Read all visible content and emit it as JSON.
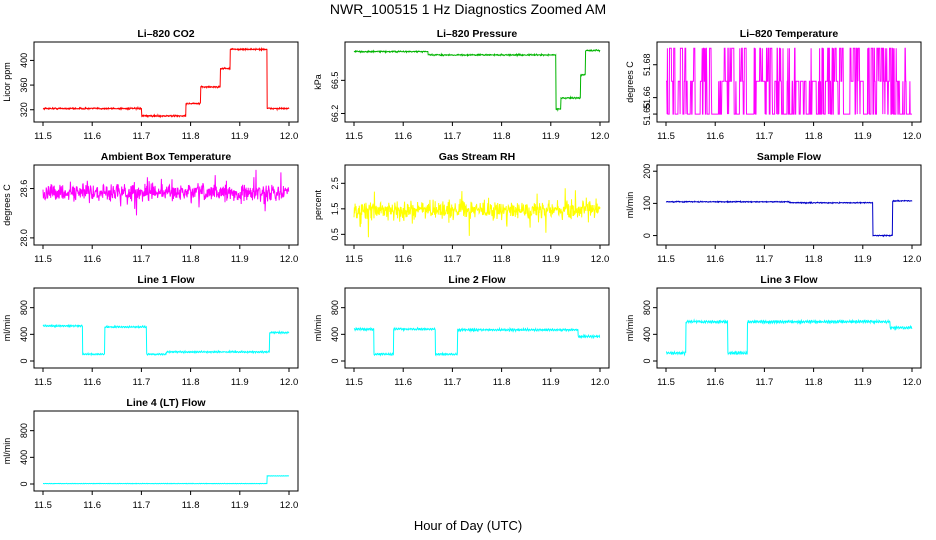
{
  "page": {
    "title": "NWR_100515  1 Hz Diagnostics Zoomed AM",
    "xaxis_title": "Hour of Day (UTC)"
  },
  "chart_data": [
    {
      "id": "co2",
      "type": "line",
      "title": "Li–820 CO2",
      "ylabel": "Licor ppm",
      "color": "#ff0000",
      "ylim": [
        305,
        425
      ],
      "yticks": [
        320,
        360,
        400
      ],
      "ytick_labels": [
        "320",
        "360",
        "400"
      ],
      "xlim": [
        11.5,
        12.0
      ],
      "xticks": [
        11.5,
        11.6,
        11.7,
        11.8,
        11.9,
        12.0
      ],
      "xtick_labels": [
        "11.5",
        "11.6",
        "11.7",
        "11.8",
        "11.9",
        "12.0"
      ],
      "noise": 1.2,
      "segments": [
        [
          11.5,
          11.7,
          322
        ],
        [
          11.7,
          11.79,
          310
        ],
        [
          11.79,
          11.82,
          330
        ],
        [
          11.82,
          11.86,
          357
        ],
        [
          11.86,
          11.88,
          387
        ],
        [
          11.88,
          11.955,
          418
        ],
        [
          11.955,
          12.0,
          322
        ]
      ]
    },
    {
      "id": "pressure",
      "type": "line",
      "title": "Li–820 Pressure",
      "ylabel": "kPa",
      "color": "#00b400",
      "ylim": [
        66.15,
        66.82
      ],
      "yticks": [
        66.2,
        66.5
      ],
      "ytick_labels": [
        "66.2",
        "66.5"
      ],
      "xlim": [
        11.5,
        12.0
      ],
      "xticks": [
        11.5,
        11.6,
        11.7,
        11.8,
        11.9,
        12.0
      ],
      "xtick_labels": [
        "11.5",
        "11.6",
        "11.7",
        "11.8",
        "11.9",
        "12.0"
      ],
      "noise": 0.006,
      "segments": [
        [
          11.5,
          11.65,
          66.76
        ],
        [
          11.65,
          11.91,
          66.73
        ],
        [
          11.91,
          11.92,
          66.24
        ],
        [
          11.92,
          11.96,
          66.34
        ],
        [
          11.96,
          11.97,
          66.55
        ],
        [
          11.97,
          12.0,
          66.77
        ]
      ]
    },
    {
      "id": "licor-temp",
      "type": "line",
      "title": "Li–820 Temperature",
      "ylabel": "degrees C",
      "color": "#ff00ff",
      "ylim": [
        51.647,
        51.692
      ],
      "yticks": [
        51.65,
        51.66,
        51.68
      ],
      "ytick_labels": [
        "51.65",
        "51.66",
        "51.68"
      ],
      "xlim": [
        11.5,
        12.0
      ],
      "xticks": [
        11.5,
        11.6,
        11.7,
        11.8,
        11.9,
        12.0
      ],
      "xtick_labels": [
        "11.5",
        "11.6",
        "11.7",
        "11.8",
        "11.9",
        "12.0"
      ],
      "levels": [
        51.65,
        51.67,
        51.69
      ]
    },
    {
      "id": "ambient-temp",
      "type": "line",
      "title": "Ambient Box Temperature",
      "ylabel": "degrees C",
      "color": "#ff00ff",
      "ylim": [
        27.95,
        28.85
      ],
      "yticks": [
        28.0,
        28.6
      ],
      "ytick_labels": [
        "28.0",
        "28.6"
      ],
      "xlim": [
        11.5,
        12.0
      ],
      "xticks": [
        11.5,
        11.6,
        11.7,
        11.8,
        11.9,
        12.0
      ],
      "xtick_labels": [
        "11.5",
        "11.6",
        "11.7",
        "11.8",
        "11.9",
        "12.0"
      ],
      "center": 28.55,
      "noise": 0.1
    },
    {
      "id": "rh",
      "type": "line",
      "title": "Gas Stream RH",
      "ylabel": "percent",
      "color": "#ffff00",
      "ylim": [
        0.2,
        3.1
      ],
      "yticks": [
        0.5,
        1.5,
        2.5
      ],
      "ytick_labels": [
        "0.5",
        "1.5",
        "2.5"
      ],
      "xlim": [
        11.5,
        12.0
      ],
      "xticks": [
        11.5,
        11.6,
        11.7,
        11.8,
        11.9,
        12.0
      ],
      "xtick_labels": [
        "11.5",
        "11.6",
        "11.7",
        "11.8",
        "11.9",
        "12.0"
      ],
      "center": 1.45,
      "noise": 0.35
    },
    {
      "id": "sample-flow",
      "type": "line",
      "title": "Sample Flow",
      "ylabel": "ml/min",
      "color": "#0000c8",
      "ylim": [
        -20,
        210
      ],
      "yticks": [
        0,
        100,
        200
      ],
      "ytick_labels": [
        "0",
        "100",
        "200"
      ],
      "xlim": [
        11.5,
        12.0
      ],
      "xticks": [
        11.5,
        11.6,
        11.7,
        11.8,
        11.9,
        12.0
      ],
      "xtick_labels": [
        "11.5",
        "11.6",
        "11.7",
        "11.8",
        "11.9",
        "12.0"
      ],
      "noise": 1.5,
      "segments": [
        [
          11.5,
          11.75,
          105
        ],
        [
          11.75,
          11.92,
          102
        ],
        [
          11.92,
          11.96,
          0
        ],
        [
          11.96,
          12.0,
          108
        ]
      ]
    },
    {
      "id": "line1",
      "type": "line",
      "title": "Line 1 Flow",
      "ylabel": "ml/min",
      "color": "#00ffff",
      "ylim": [
        -60,
        1050
      ],
      "yticks": [
        0,
        400,
        800
      ],
      "ytick_labels": [
        "0",
        "400",
        "800"
      ],
      "xlim": [
        11.5,
        12.0
      ],
      "xticks": [
        11.5,
        11.6,
        11.7,
        11.8,
        11.9,
        12.0
      ],
      "xtick_labels": [
        "11.5",
        "11.6",
        "11.7",
        "11.8",
        "11.9",
        "12.0"
      ],
      "noise": 8,
      "segments": [
        [
          11.5,
          11.58,
          520
        ],
        [
          11.58,
          11.625,
          95
        ],
        [
          11.625,
          11.71,
          505
        ],
        [
          11.71,
          11.75,
          95
        ],
        [
          11.75,
          11.96,
          130
        ],
        [
          11.96,
          12.0,
          420
        ]
      ]
    },
    {
      "id": "line2",
      "type": "line",
      "title": "Line 2 Flow",
      "ylabel": "ml/min",
      "color": "#00ffff",
      "ylim": [
        -60,
        1050
      ],
      "yticks": [
        0,
        400,
        800
      ],
      "ytick_labels": [
        "0",
        "400",
        "800"
      ],
      "xlim": [
        11.5,
        12.0
      ],
      "xticks": [
        11.5,
        11.6,
        11.7,
        11.8,
        11.9,
        12.0
      ],
      "xtick_labels": [
        "11.5",
        "11.6",
        "11.7",
        "11.8",
        "11.9",
        "12.0"
      ],
      "noise": 10,
      "segments": [
        [
          11.5,
          11.54,
          470
        ],
        [
          11.54,
          11.58,
          95
        ],
        [
          11.58,
          11.665,
          470
        ],
        [
          11.665,
          11.71,
          95
        ],
        [
          11.71,
          11.955,
          460
        ],
        [
          11.955,
          12.0,
          360
        ]
      ]
    },
    {
      "id": "line3",
      "type": "line",
      "title": "Line 3 Flow",
      "ylabel": "ml/min",
      "color": "#00ffff",
      "ylim": [
        -60,
        1050
      ],
      "yticks": [
        0,
        400,
        800
      ],
      "ytick_labels": [
        "0",
        "400",
        "800"
      ],
      "xlim": [
        11.5,
        12.0
      ],
      "xticks": [
        11.5,
        11.6,
        11.7,
        11.8,
        11.9,
        12.0
      ],
      "xtick_labels": [
        "11.5",
        "11.6",
        "11.7",
        "11.8",
        "11.9",
        "12.0"
      ],
      "noise": 12,
      "segments": [
        [
          11.5,
          11.54,
          110
        ],
        [
          11.54,
          11.625,
          580
        ],
        [
          11.625,
          11.665,
          110
        ],
        [
          11.665,
          11.955,
          580
        ],
        [
          11.955,
          12.0,
          490
        ]
      ]
    },
    {
      "id": "line4",
      "type": "line",
      "title": "Line 4 (LT) Flow",
      "ylabel": "ml/min",
      "color": "#00ffff",
      "ylim": [
        -60,
        1050
      ],
      "yticks": [
        0,
        400,
        800
      ],
      "ytick_labels": [
        "0",
        "400",
        "800"
      ],
      "xlim": [
        11.5,
        12.0
      ],
      "xticks": [
        11.5,
        11.6,
        11.7,
        11.8,
        11.9,
        12.0
      ],
      "xtick_labels": [
        "11.5",
        "11.6",
        "11.7",
        "11.8",
        "11.9",
        "12.0"
      ],
      "noise": 2,
      "segments": [
        [
          11.5,
          11.955,
          5
        ],
        [
          11.955,
          12.0,
          120
        ]
      ]
    }
  ]
}
